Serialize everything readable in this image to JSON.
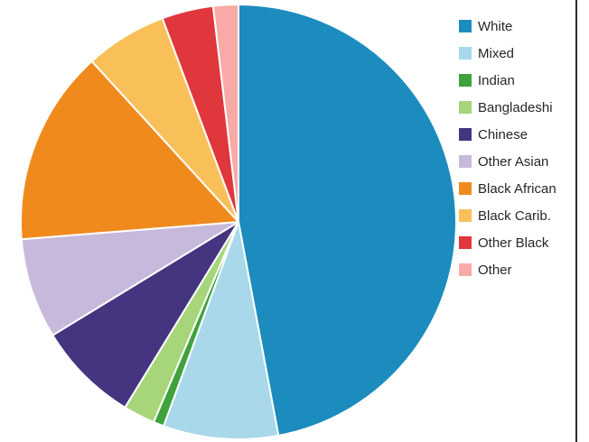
{
  "chart_data": {
    "type": "pie",
    "title": "",
    "start_angle_deg": 0,
    "direction": "clockwise",
    "legend_position": "right",
    "categories": [
      "White",
      "Mixed",
      "Indian",
      "Bangladeshi",
      "Chinese",
      "Other Asian",
      "Black African",
      "Black Carib.",
      "Other Black",
      "Other"
    ],
    "values": [
      48.0,
      8.7,
      0.8,
      2.4,
      7.7,
      7.6,
      14.8,
      6.2,
      3.9,
      1.9
    ],
    "colors": [
      "#1b8cbd",
      "#a8d8ea",
      "#3fa23c",
      "#a6d57a",
      "#45347f",
      "#c7b9dc",
      "#f08a1d",
      "#f9c05a",
      "#e0373d",
      "#f7aaa6"
    ]
  }
}
